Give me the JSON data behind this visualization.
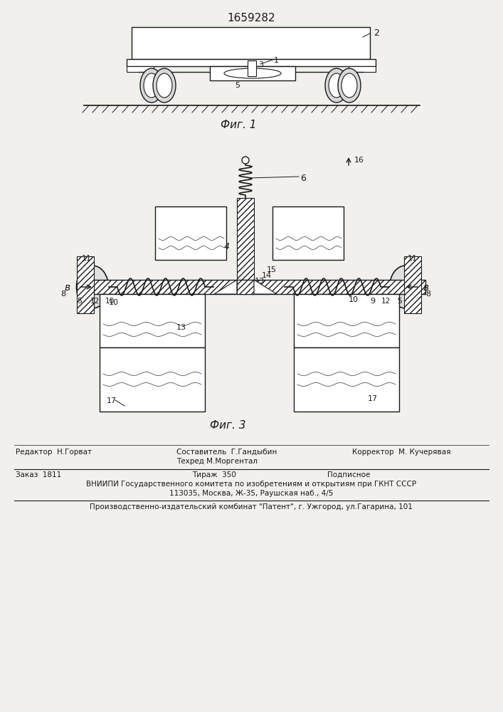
{
  "patent_number": "1659282",
  "fig1_caption": "Фиг. 1",
  "fig3_caption": "Фиг. 3",
  "bg_color": "#f2f0ec",
  "line_color": "#1a1a1a",
  "footer": {
    "editor": "Редактор  Н.Горват",
    "composer_label": "Составитель  Г.Гандыбин",
    "techred_label": "Техред М.Моргентал",
    "corrector_label": "Корректор  М. Кучерявая",
    "order_label": "Заказ  1811",
    "tirazh_label": "Тираж  350",
    "podpisnoe_label": "Подписное",
    "vniipи_line": "ВНИИПИ Государственного комитета по изобретениям и открытиям при ГКНТ СССР",
    "address_line": "113035, Москва, Ж-35, Раушская наб., 4/5",
    "publisher_line": "Производственно-издательский комбинат \"Патент\", г. Ужгород, ул.Гагарина, 101"
  }
}
